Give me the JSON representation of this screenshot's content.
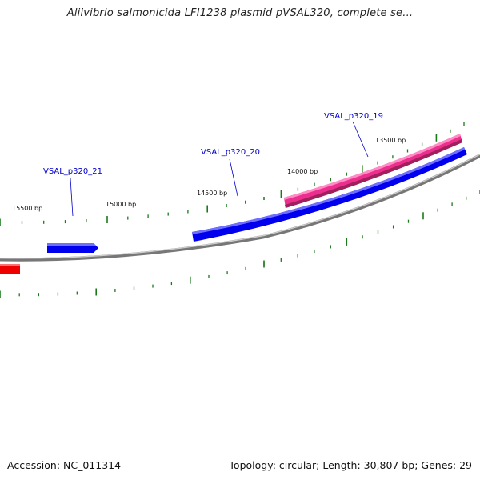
{
  "title": "Aliivibrio salmonicida LFI1238 plasmid pVSAL320, complete se...",
  "footer": {
    "accession": "Accession: NC_011314",
    "summary": "Topology: circular; Length: 30,807 bp; Genes: 29"
  },
  "colors": {
    "backbone": "#8c8c8c",
    "forward_gene": "#0000ee",
    "highlight_gene": "#ee2e8e",
    "reverse_gene": "#ee0000",
    "tick": "#1a7a1a",
    "gene_label": "#0000cc"
  },
  "position_labels": [
    "15500 bp",
    "15000 bp",
    "14500 bp",
    "14000 bp",
    "13500 bp"
  ],
  "gene_labels": [
    "VSAL_p320_21",
    "VSAL_p320_20",
    "VSAL_p320_19"
  ]
}
